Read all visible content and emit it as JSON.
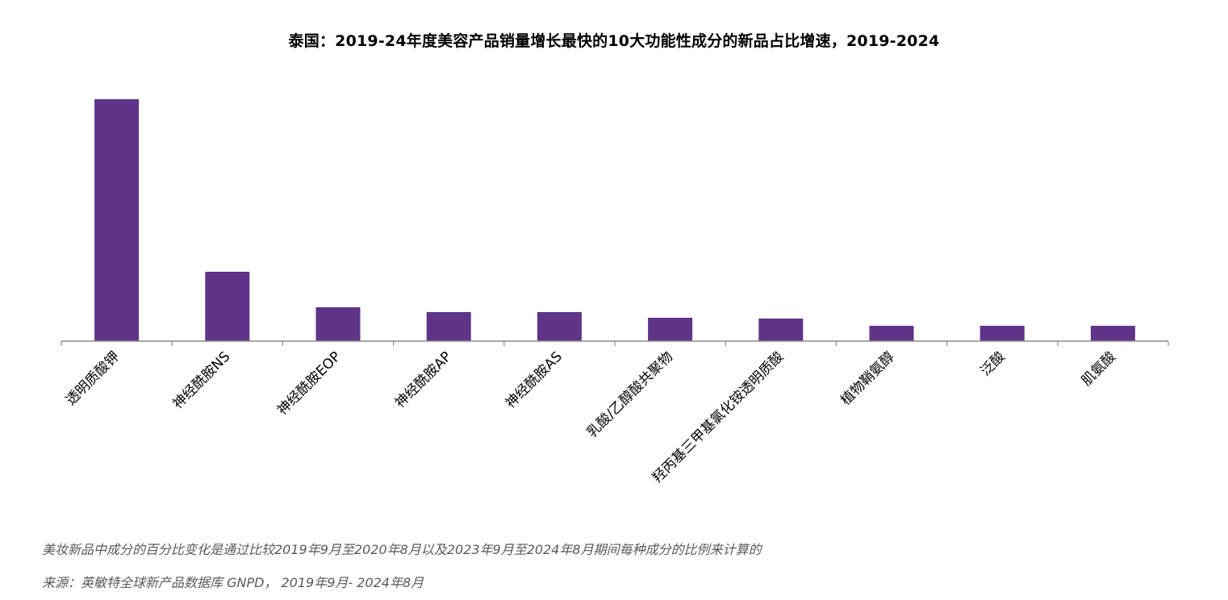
{
  "chart_data": {
    "type": "bar",
    "title": "泰国：2019-24年度美容产品销量增长最快的10大功能性成分的新品占比增速，2019-2024",
    "xlabel": "",
    "ylabel": "",
    "categories": [
      "透明质酸钾",
      "神经酰胺NS",
      "神经酰胺EOP",
      "神经酰胺AP",
      "神经酰胺AS",
      "乳酸/乙醇酸共聚物",
      "羟丙基三甲基氯化铵透明质酸",
      "植物鞘氨醇",
      "泛酸",
      "肌氨酸"
    ],
    "values": [
      300,
      86,
      42,
      36,
      36,
      29,
      28,
      19,
      19,
      19
    ],
    "ylim": [
      0,
      320
    ],
    "bar_color": "#5F3489",
    "axis_color": "#8C8C8C",
    "grid": false,
    "legend": false
  },
  "footnotes": {
    "note": "美妆新品中成分的百分比变化是通过比较2019年9月至2020年8月以及2023年9月至2024年8月期间每种成分的比例来计算的",
    "source": "来源：英敏特全球新产品数据库 GNPD，  2019年9月- 2024年8月"
  }
}
